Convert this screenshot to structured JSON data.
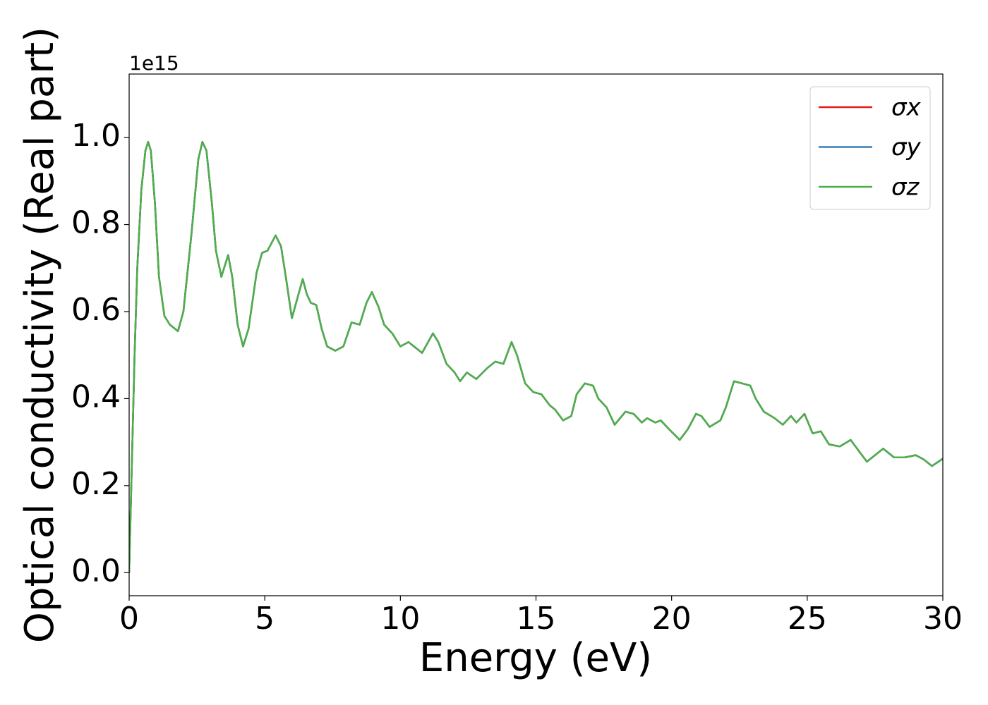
{
  "chart_data": {
    "type": "line",
    "xlabel": "Energy (eV)",
    "ylabel": "Optical conductivity (Real part)",
    "y_offset_label": "1e15",
    "legend": "upper right",
    "grid": false,
    "xlim": [
      0,
      30
    ],
    "xticks": [
      0,
      5,
      10,
      15,
      20,
      25,
      30
    ],
    "ylim": [
      -0.053,
      1.146
    ],
    "yticks": [
      {
        "value": 0,
        "label": "0.0"
      },
      0.2,
      0.4,
      0.6,
      0.8,
      {
        "value": 1,
        "label": "1.0"
      }
    ],
    "x": [
      0,
      0.1,
      0.2,
      0.3,
      0.45,
      0.6,
      0.7,
      0.8,
      0.95,
      1.1,
      1.3,
      1.5,
      1.8,
      2.0,
      2.3,
      2.55,
      2.7,
      2.85,
      3.05,
      3.2,
      3.4,
      3.55,
      3.65,
      3.8,
      4.0,
      4.2,
      4.4,
      4.7,
      4.9,
      5.1,
      5.4,
      5.6,
      5.8,
      6.0,
      6.2,
      6.4,
      6.55,
      6.7,
      6.9,
      7.1,
      7.3,
      7.6,
      7.9,
      8.2,
      8.5,
      8.75,
      8.95,
      9.2,
      9.4,
      9.7,
      10.0,
      10.3,
      10.5,
      10.8,
      11.2,
      11.4,
      11.7,
      12.0,
      12.2,
      12.45,
      12.8,
      13.2,
      13.5,
      13.8,
      14.1,
      14.3,
      14.6,
      14.9,
      15.2,
      15.5,
      15.7,
      16.0,
      16.3,
      16.5,
      16.8,
      17.1,
      17.3,
      17.6,
      17.9,
      18.3,
      18.6,
      18.9,
      19.1,
      19.4,
      19.6,
      19.9,
      20.3,
      20.6,
      20.9,
      21.1,
      21.4,
      21.8,
      22.0,
      22.3,
      22.6,
      22.9,
      23.1,
      23.4,
      23.8,
      24.1,
      24.4,
      24.6,
      24.9,
      25.2,
      25.5,
      25.8,
      26.2,
      26.6,
      26.9,
      27.2,
      27.5,
      27.8,
      28.2,
      28.6,
      29.0,
      29.3,
      29.6,
      30.0
    ],
    "series": [
      {
        "name": "σx",
        "color": "#e41a1c",
        "values": [
          0,
          0.25,
          0.5,
          0.7,
          0.88,
          0.97,
          0.99,
          0.97,
          0.85,
          0.68,
          0.59,
          0.57,
          0.555,
          0.6,
          0.78,
          0.95,
          0.99,
          0.97,
          0.85,
          0.74,
          0.68,
          0.71,
          0.73,
          0.68,
          0.57,
          0.52,
          0.56,
          0.69,
          0.735,
          0.74,
          0.775,
          0.75,
          0.67,
          0.585,
          0.63,
          0.675,
          0.64,
          0.62,
          0.615,
          0.56,
          0.52,
          0.51,
          0.52,
          0.575,
          0.57,
          0.62,
          0.645,
          0.61,
          0.57,
          0.55,
          0.52,
          0.53,
          0.52,
          0.505,
          0.55,
          0.53,
          0.48,
          0.46,
          0.44,
          0.46,
          0.445,
          0.47,
          0.485,
          0.48,
          0.53,
          0.5,
          0.435,
          0.415,
          0.41,
          0.385,
          0.375,
          0.35,
          0.36,
          0.41,
          0.435,
          0.43,
          0.4,
          0.38,
          0.34,
          0.37,
          0.365,
          0.345,
          0.355,
          0.345,
          0.35,
          0.33,
          0.305,
          0.33,
          0.365,
          0.36,
          0.335,
          0.35,
          0.38,
          0.44,
          0.435,
          0.43,
          0.4,
          0.37,
          0.355,
          0.34,
          0.36,
          0.345,
          0.365,
          0.32,
          0.325,
          0.295,
          0.29,
          0.305,
          0.28,
          0.255,
          0.27,
          0.285,
          0.265,
          0.265,
          0.27,
          0.26,
          0.245,
          0.262
        ]
      },
      {
        "name": "σy",
        "color": "#377eb8",
        "values": [
          0,
          0.25,
          0.5,
          0.7,
          0.88,
          0.97,
          0.99,
          0.97,
          0.85,
          0.68,
          0.59,
          0.57,
          0.555,
          0.6,
          0.78,
          0.95,
          0.99,
          0.97,
          0.85,
          0.74,
          0.68,
          0.71,
          0.73,
          0.68,
          0.57,
          0.52,
          0.56,
          0.69,
          0.735,
          0.74,
          0.775,
          0.75,
          0.67,
          0.585,
          0.63,
          0.675,
          0.64,
          0.62,
          0.615,
          0.56,
          0.52,
          0.51,
          0.52,
          0.575,
          0.57,
          0.62,
          0.645,
          0.61,
          0.57,
          0.55,
          0.52,
          0.53,
          0.52,
          0.505,
          0.55,
          0.53,
          0.48,
          0.46,
          0.44,
          0.46,
          0.445,
          0.47,
          0.485,
          0.48,
          0.53,
          0.5,
          0.435,
          0.415,
          0.41,
          0.385,
          0.375,
          0.35,
          0.36,
          0.41,
          0.435,
          0.43,
          0.4,
          0.38,
          0.34,
          0.37,
          0.365,
          0.345,
          0.355,
          0.345,
          0.35,
          0.33,
          0.305,
          0.33,
          0.365,
          0.36,
          0.335,
          0.35,
          0.38,
          0.44,
          0.435,
          0.43,
          0.4,
          0.37,
          0.355,
          0.34,
          0.36,
          0.345,
          0.365,
          0.32,
          0.325,
          0.295,
          0.29,
          0.305,
          0.28,
          0.255,
          0.27,
          0.285,
          0.265,
          0.265,
          0.27,
          0.26,
          0.245,
          0.262
        ]
      },
      {
        "name": "σz",
        "color": "#4daf4a",
        "values": [
          0,
          0.25,
          0.5,
          0.7,
          0.88,
          0.97,
          0.99,
          0.97,
          0.85,
          0.68,
          0.59,
          0.57,
          0.555,
          0.6,
          0.78,
          0.95,
          0.99,
          0.97,
          0.85,
          0.74,
          0.68,
          0.71,
          0.73,
          0.68,
          0.57,
          0.52,
          0.56,
          0.69,
          0.735,
          0.74,
          0.775,
          0.75,
          0.67,
          0.585,
          0.63,
          0.675,
          0.64,
          0.62,
          0.615,
          0.56,
          0.52,
          0.51,
          0.52,
          0.575,
          0.57,
          0.62,
          0.645,
          0.61,
          0.57,
          0.55,
          0.52,
          0.53,
          0.52,
          0.505,
          0.55,
          0.53,
          0.48,
          0.46,
          0.44,
          0.46,
          0.445,
          0.47,
          0.485,
          0.48,
          0.53,
          0.5,
          0.435,
          0.415,
          0.41,
          0.385,
          0.375,
          0.35,
          0.36,
          0.41,
          0.435,
          0.43,
          0.4,
          0.38,
          0.34,
          0.37,
          0.365,
          0.345,
          0.355,
          0.345,
          0.35,
          0.33,
          0.305,
          0.33,
          0.365,
          0.36,
          0.335,
          0.35,
          0.38,
          0.44,
          0.435,
          0.43,
          0.4,
          0.37,
          0.355,
          0.34,
          0.36,
          0.345,
          0.365,
          0.32,
          0.325,
          0.295,
          0.29,
          0.305,
          0.28,
          0.255,
          0.27,
          0.285,
          0.265,
          0.265,
          0.27,
          0.26,
          0.245,
          0.262
        ]
      }
    ]
  }
}
